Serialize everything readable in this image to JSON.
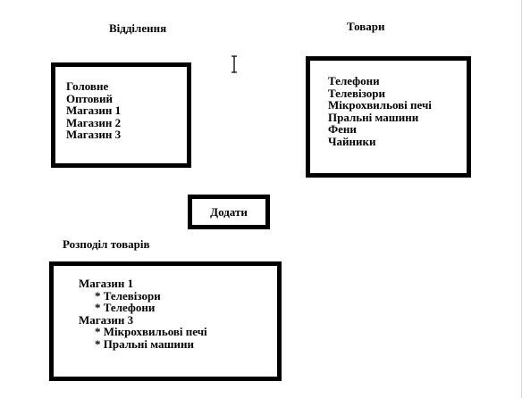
{
  "departments": {
    "heading": "Відділення",
    "items": [
      "Головне",
      "Оптовий",
      "Магазин 1",
      "Магазин 2",
      "Магазин 3"
    ]
  },
  "goods": {
    "heading": "Товари",
    "items": [
      "Телефони",
      "Телевізори",
      "Мікрохвильові печі",
      "Пральні машини",
      "Фени",
      "Чайники"
    ]
  },
  "add_button": {
    "label": "Додати"
  },
  "distribution": {
    "heading": "Розподіл товарів",
    "lines": [
      {
        "text": "Магазин 1",
        "indent": false
      },
      {
        "text": "* Телевізори",
        "indent": true
      },
      {
        "text": "* Телефони",
        "indent": true
      },
      {
        "text": "Магазин 3",
        "indent": false
      },
      {
        "text": "* Мікрохвильові печі",
        "indent": true
      },
      {
        "text": "* Пральні машини",
        "indent": true
      }
    ]
  },
  "cursor_icon": "text-cursor-icon"
}
